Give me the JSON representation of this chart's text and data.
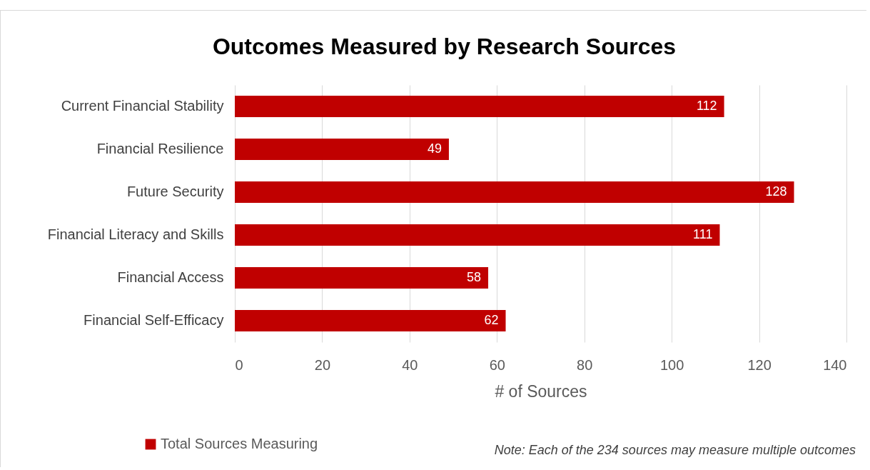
{
  "chart_data": {
    "type": "bar",
    "orientation": "horizontal",
    "title": "Outcomes Measured by Research Sources",
    "xlabel": "# of Sources",
    "categories": [
      "Current Financial Stability",
      "Financial Resilience",
      "Future Security",
      "Financial Literacy and Skills",
      "Financial Access",
      "Financial Self-Efficacy"
    ],
    "series": [
      {
        "name": "Total Sources Measuring",
        "color": "#c00000",
        "values": [
          112,
          49,
          128,
          111,
          58,
          62
        ]
      }
    ],
    "xlim": [
      0,
      140
    ],
    "xticks": [
      0,
      20,
      40,
      60,
      80,
      100,
      120,
      140
    ],
    "grid": "x",
    "legend": "bottom left",
    "data_labels": true,
    "annotations": [
      "Note: Each of the 234 sources may measure multiple outcomes"
    ]
  }
}
